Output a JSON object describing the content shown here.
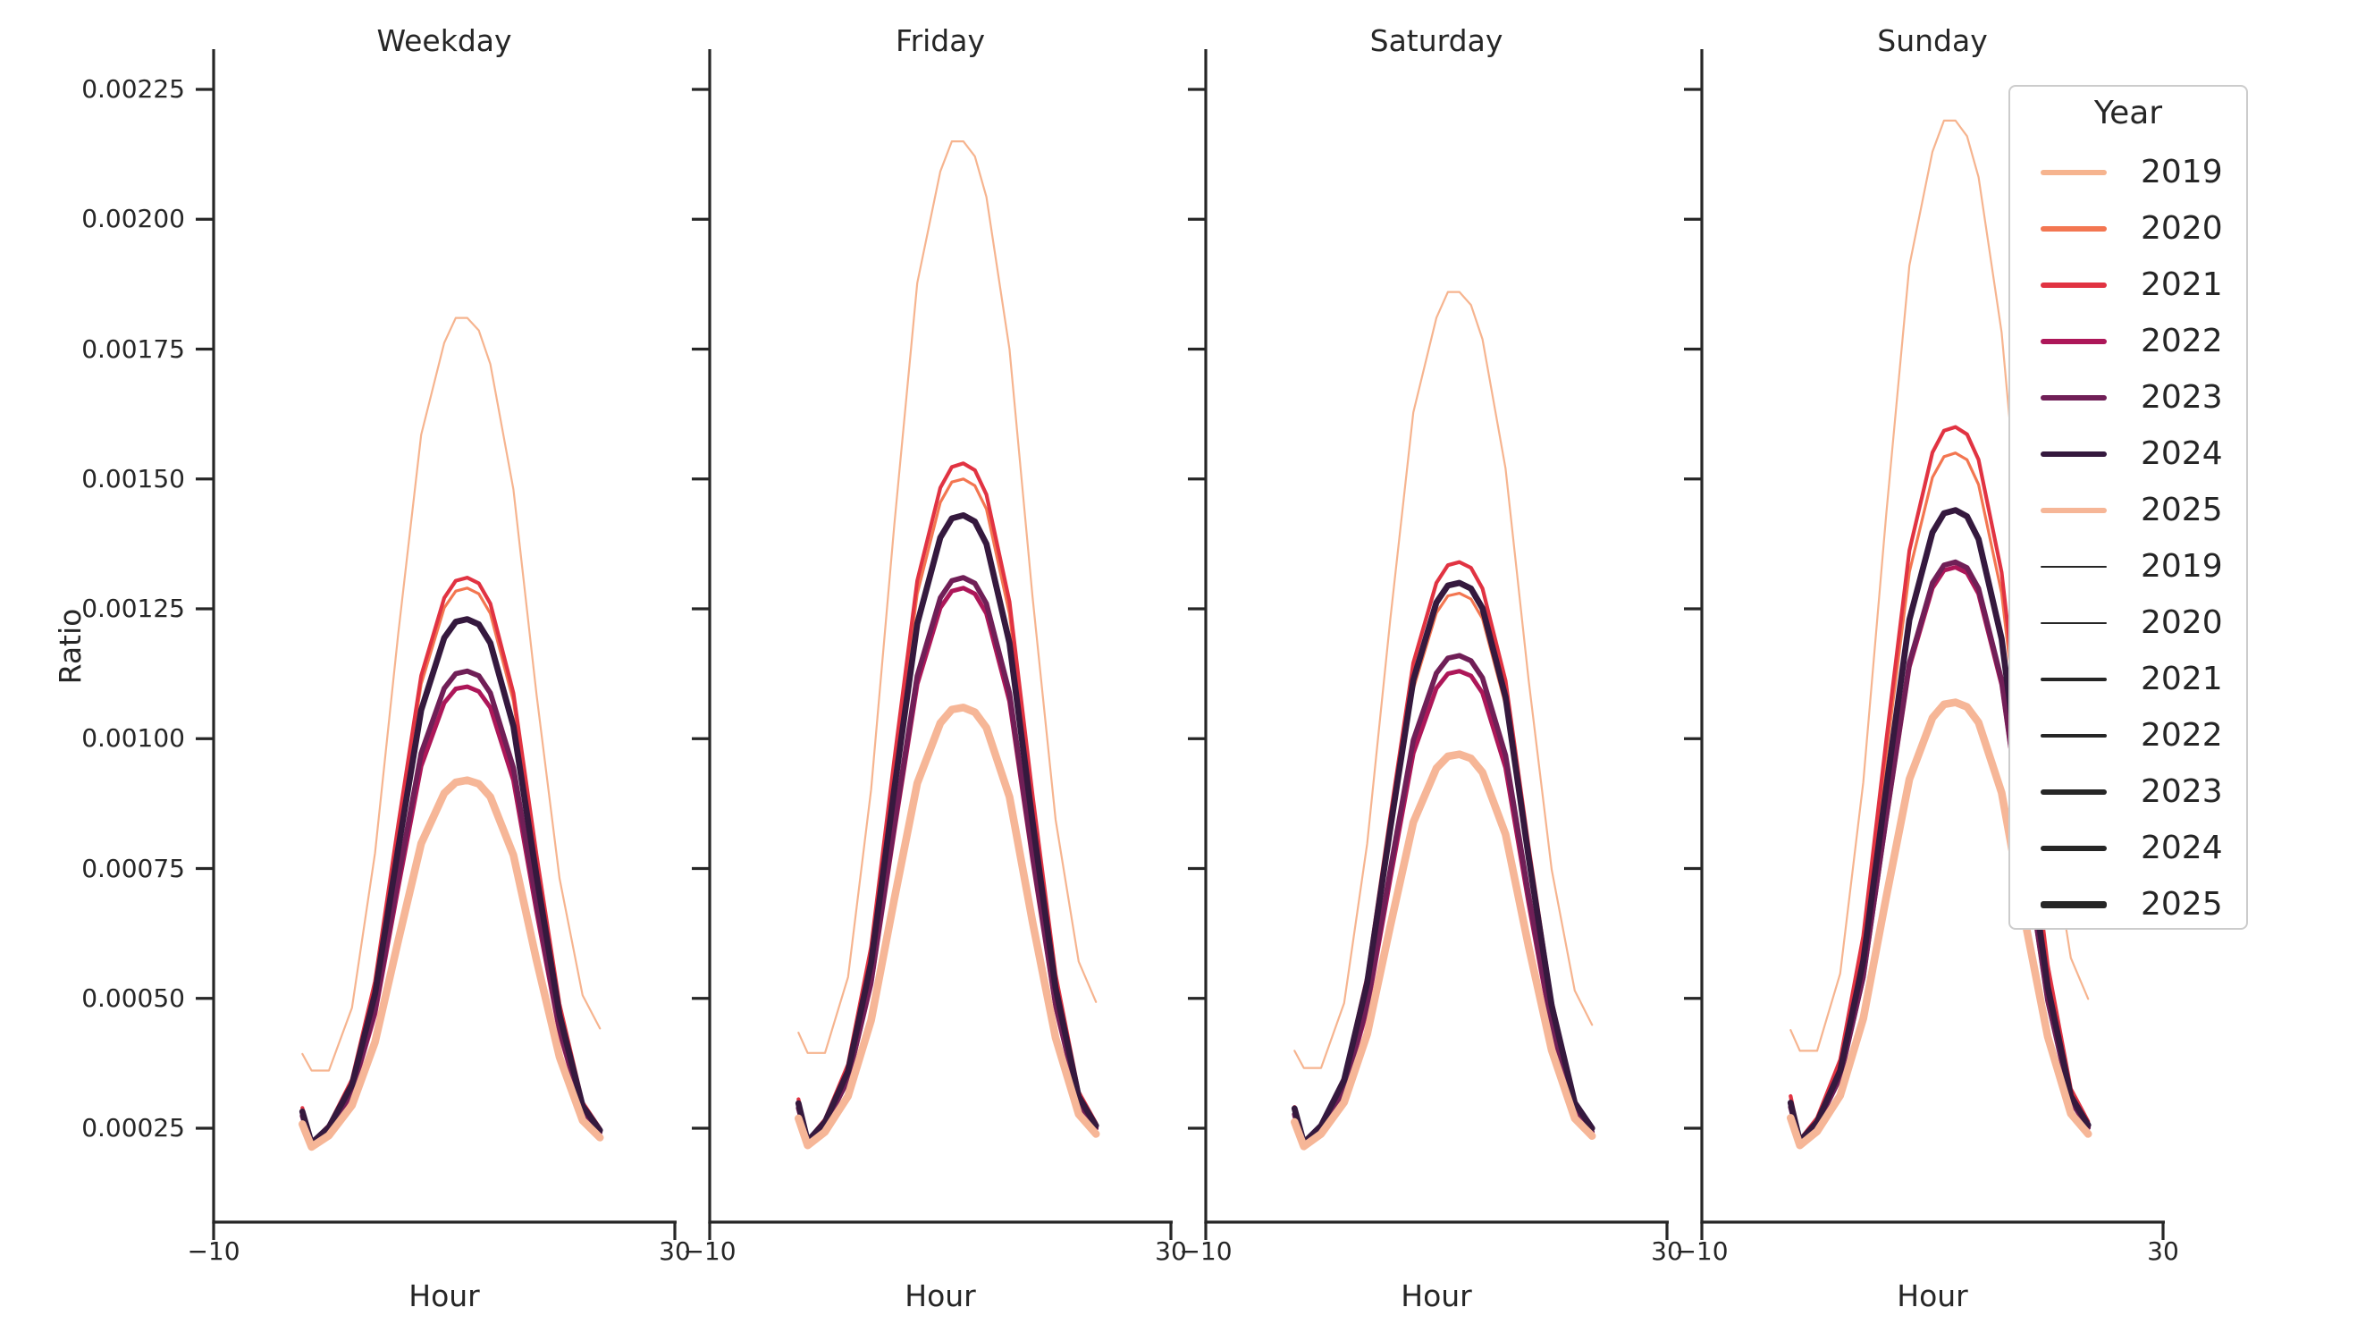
{
  "chart_data": {
    "type": "line",
    "xlabel": "Hour",
    "ylabel": "Ratio",
    "x_range": [
      -10,
      30
    ],
    "x_tick_labels": [
      "−10",
      "30"
    ],
    "y_ticks": [
      0.00225,
      0.002,
      0.00175,
      0.0015,
      0.00125,
      0.001,
      0.00075,
      0.0005,
      0.00025
    ],
    "y_tick_labels": [
      "0.00225",
      "0.00200",
      "0.00175",
      "0.00150",
      "0.00125",
      "0.00100",
      "0.00075",
      "0.00050",
      "0.00025"
    ],
    "axis_color": "#262626",
    "hours": [
      -2.3,
      -1.5,
      0,
      2,
      4,
      6,
      8,
      10,
      11,
      12,
      13,
      14,
      16,
      18,
      20,
      22,
      23.5
    ],
    "year_colors": {
      "2019": "#f6b48f",
      "2020": "#f37651",
      "2021": "#e13342",
      "2022": "#ad1759",
      "2023": "#701f57",
      "2024": "#35193e",
      "2025": "#f6b697"
    },
    "year_widths": {
      "2019": 2.2,
      "2020": 3.2,
      "2021": 4.2,
      "2022": 5.0,
      "2023": 5.8,
      "2024": 6.8,
      "2025": 8.6
    },
    "facets": [
      {
        "title": "Weekday",
        "series": [
          {
            "year": "2019",
            "color": "#f6b48f",
            "width": 2.2,
            "peak": 0.00181,
            "values": [
              0.000393,
              0.000361,
              0.000361,
              0.000482,
              0.00078,
              0.0012,
              0.001585,
              0.001762,
              0.00181,
              0.00181,
              0.001786,
              0.001721,
              0.00148,
              0.001086,
              0.000731,
              0.000506,
              0.000442
            ]
          },
          {
            "year": "2020",
            "color": "#f37651",
            "width": 3.2,
            "peak": 0.00129,
            "values": [
              0.000287,
              0.000222,
              0.000255,
              0.000342,
              0.000527,
              0.000821,
              0.001105,
              0.001252,
              0.001284,
              0.00129,
              0.001279,
              0.001241,
              0.001072,
              0.000767,
              0.000483,
              0.000298,
              0.000249
            ]
          },
          {
            "year": "2021",
            "color": "#e13342",
            "width": 4.2,
            "peak": 0.00131,
            "values": [
              0.000289,
              0.000222,
              0.000256,
              0.000344,
              0.000533,
              0.000833,
              0.001121,
              0.001271,
              0.001304,
              0.00131,
              0.001299,
              0.00126,
              0.001088,
              0.000777,
              0.000489,
              0.0003,
              0.00025
            ]
          },
          {
            "year": "2022",
            "color": "#ad1759",
            "width": 5.0,
            "peak": 0.0011,
            "values": [
              0.000272,
              0.000218,
              0.000245,
              0.000317,
              0.00047,
              0.000713,
              0.000947,
              0.001069,
              0.001096,
              0.0011,
              0.001091,
              0.00106,
              0.00092,
              0.000668,
              0.000434,
              0.000281,
              0.000241
            ]
          },
          {
            "year": "2023",
            "color": "#701f57",
            "width": 5.8,
            "peak": 0.00113,
            "values": [
              0.000274,
              0.000219,
              0.000247,
              0.000321,
              0.000479,
              0.00073,
              0.000972,
              0.001097,
              0.001125,
              0.00113,
              0.001121,
              0.001088,
              0.000944,
              0.000684,
              0.000442,
              0.000284,
              0.000242
            ]
          },
          {
            "year": "2024",
            "color": "#35193e",
            "width": 6.8,
            "peak": 0.00123,
            "values": [
              0.000282,
              0.000221,
              0.000252,
              0.000334,
              0.000509,
              0.000787,
              0.001055,
              0.001194,
              0.001225,
              0.00123,
              0.00122,
              0.001184,
              0.001024,
              0.000736,
              0.000468,
              0.000293,
              0.000246
            ]
          },
          {
            "year": "2025",
            "color": "#f6b697",
            "width": 8.6,
            "peak": 0.00092,
            "values": [
              0.000258,
              0.000214,
              0.000236,
              0.000294,
              0.000416,
              0.00061,
              0.000798,
              0.000895,
              0.000916,
              0.00092,
              0.000913,
              0.000888,
              0.000776,
              0.000574,
              0.000387,
              0.000265,
              0.000232
            ]
          }
        ]
      },
      {
        "title": "Friday",
        "series": [
          {
            "year": "2019",
            "color": "#f6b48f",
            "width": 2.2,
            "peak": 0.00215,
            "values": [
              0.000434,
              0.000395,
              0.000395,
              0.000541,
              0.000902,
              0.001409,
              0.001877,
              0.002092,
              0.00215,
              0.00215,
              0.002121,
              0.002043,
              0.00175,
              0.001273,
              0.000844,
              0.000571,
              0.000493
            ]
          },
          {
            "year": "2020",
            "color": "#f37651",
            "width": 3.2,
            "peak": 0.0015,
            "values": [
              0.000304,
              0.000226,
              0.000265,
              0.000369,
              0.00059,
              0.000941,
              0.001279,
              0.001455,
              0.001494,
              0.0015,
              0.001487,
              0.001442,
              0.00124,
              0.000876,
              0.000538,
              0.000317,
              0.000259
            ]
          },
          {
            "year": "2021",
            "color": "#e13342",
            "width": 4.2,
            "peak": 0.00153,
            "values": [
              0.000306,
              0.000227,
              0.000267,
              0.000373,
              0.000599,
              0.000958,
              0.001304,
              0.001483,
              0.001523,
              0.00153,
              0.001517,
              0.00147,
              0.001264,
              0.000892,
              0.000546,
              0.00032,
              0.00026
            ]
          },
          {
            "year": "2022",
            "color": "#ad1759",
            "width": 5.0,
            "peak": 0.00129,
            "values": [
              0.000287,
              0.000222,
              0.000255,
              0.000342,
              0.000527,
              0.000821,
              0.001105,
              0.001252,
              0.001284,
              0.00129,
              0.001279,
              0.001241,
              0.001072,
              0.000767,
              0.000483,
              0.000298,
              0.000249
            ]
          },
          {
            "year": "2023",
            "color": "#701f57",
            "width": 5.8,
            "peak": 0.00131,
            "values": [
              0.000289,
              0.000222,
              0.000256,
              0.000344,
              0.000533,
              0.000833,
              0.001121,
              0.001271,
              0.001304,
              0.00131,
              0.001299,
              0.00126,
              0.001088,
              0.000777,
              0.000489,
              0.0003,
              0.00025
            ]
          },
          {
            "year": "2024",
            "color": "#35193e",
            "width": 6.8,
            "peak": 0.00143,
            "values": [
              0.000298,
              0.000225,
              0.000262,
              0.00036,
              0.000569,
              0.000901,
              0.001221,
              0.001387,
              0.001424,
              0.00143,
              0.001418,
              0.001375,
              0.001184,
              0.00084,
              0.00052,
              0.000311,
              0.000255
            ]
          },
          {
            "year": "2025",
            "color": "#f6b697",
            "width": 8.6,
            "peak": 0.00106,
            "values": [
              0.000269,
              0.000217,
              0.000243,
              0.000312,
              0.000458,
              0.00069,
              0.000914,
              0.00103,
              0.001056,
              0.00106,
              0.001051,
              0.001021,
              0.000888,
              0.000647,
              0.000424,
              0.000277,
              0.000239
            ]
          }
        ]
      },
      {
        "title": "Saturday",
        "series": [
          {
            "year": "2019",
            "color": "#f6b48f",
            "width": 2.2,
            "peak": 0.00186,
            "values": [
              0.000399,
              0.000366,
              0.000366,
              0.000491,
              0.000798,
              0.001229,
              0.001628,
              0.00181,
              0.00186,
              0.00186,
              0.001835,
              0.001769,
              0.00152,
              0.001113,
              0.000748,
              0.000515,
              0.000449
            ]
          },
          {
            "year": "2020",
            "color": "#f37651",
            "width": 3.2,
            "peak": 0.00128,
            "values": [
              0.000286,
              0.000222,
              0.000254,
              0.00034,
              0.000524,
              0.000816,
              0.001096,
              0.001242,
              0.001275,
              0.00128,
              0.001269,
              0.001231,
              0.001064,
              0.000762,
              0.000481,
              0.000297,
              0.000249
            ]
          },
          {
            "year": "2021",
            "color": "#e13342",
            "width": 4.2,
            "peak": 0.00134,
            "values": [
              0.000291,
              0.000223,
              0.000257,
              0.000348,
              0.000542,
              0.00085,
              0.001146,
              0.0013,
              0.001334,
              0.00134,
              0.001329,
              0.001289,
              0.001112,
              0.000793,
              0.000496,
              0.000303,
              0.000251
            ]
          },
          {
            "year": "2022",
            "color": "#ad1759",
            "width": 5.0,
            "peak": 0.00113,
            "values": [
              0.000274,
              0.000219,
              0.000247,
              0.000321,
              0.000479,
              0.00073,
              0.000972,
              0.001097,
              0.001125,
              0.00113,
              0.001121,
              0.001088,
              0.000944,
              0.000684,
              0.000442,
              0.000284,
              0.000242
            ]
          },
          {
            "year": "2023",
            "color": "#701f57",
            "width": 5.8,
            "peak": 0.00116,
            "values": [
              0.000277,
              0.000219,
              0.000248,
              0.000325,
              0.000488,
              0.000747,
              0.000997,
              0.001126,
              0.001155,
              0.00116,
              0.00115,
              0.001117,
              0.000968,
              0.000699,
              0.00045,
              0.000286,
              0.000243
            ]
          },
          {
            "year": "2024",
            "color": "#35193e",
            "width": 6.8,
            "peak": 0.0013,
            "values": [
              0.000288,
              0.000222,
              0.000255,
              0.000343,
              0.00053,
              0.000827,
              0.001113,
              0.001262,
              0.001295,
              0.0013,
              0.001289,
              0.001251,
              0.00108,
              0.000772,
              0.000486,
              0.000299,
              0.00025
            ]
          },
          {
            "year": "2025",
            "color": "#f6b697",
            "width": 8.6,
            "peak": 0.00097,
            "values": [
              0.000262,
              0.000215,
              0.000239,
              0.0003,
              0.000431,
              0.000639,
              0.000839,
              0.000943,
              0.000966,
              0.00097,
              0.000962,
              0.000935,
              0.000816,
              0.0006,
              0.0004,
              0.000269,
              0.000235
            ]
          }
        ]
      },
      {
        "title": "Sunday",
        "series": [
          {
            "year": "2019",
            "color": "#f6b48f",
            "width": 2.2,
            "peak": 0.00219,
            "values": [
              0.000439,
              0.000399,
              0.000399,
              0.000548,
              0.000916,
              0.001434,
              0.001911,
              0.00213,
              0.00219,
              0.00219,
              0.00216,
              0.002081,
              0.001782,
              0.001295,
              0.000857,
              0.000578,
              0.000499
            ]
          },
          {
            "year": "2020",
            "color": "#f37651",
            "width": 3.2,
            "peak": 0.00155,
            "values": [
              0.000308,
              0.000227,
              0.000268,
              0.000376,
              0.000605,
              0.00097,
              0.001321,
              0.001503,
              0.001543,
              0.00155,
              0.001537,
              0.001489,
              0.00128,
              0.000902,
              0.000551,
              0.000322,
              0.000261
            ]
          },
          {
            "year": "2021",
            "color": "#e13342",
            "width": 4.2,
            "peak": 0.0016,
            "values": [
              0.000312,
              0.000228,
              0.00027,
              0.000382,
              0.00062,
              0.000998,
              0.001362,
              0.001551,
              0.001593,
              0.0016,
              0.001586,
              0.001537,
              0.00132,
              0.000928,
              0.000564,
              0.000326,
              0.000263
            ]
          },
          {
            "year": "2022",
            "color": "#ad1759",
            "width": 5.0,
            "peak": 0.00133,
            "values": [
              0.00029,
              0.000223,
              0.000257,
              0.000347,
              0.000539,
              0.000844,
              0.001138,
              0.00129,
              0.001324,
              0.00133,
              0.001319,
              0.001279,
              0.001104,
              0.000788,
              0.000494,
              0.000302,
              0.000251
            ]
          },
          {
            "year": "2023",
            "color": "#701f57",
            "width": 5.8,
            "peak": 0.00134,
            "values": [
              0.000291,
              0.000223,
              0.000257,
              0.000348,
              0.000542,
              0.00085,
              0.001146,
              0.0013,
              0.001334,
              0.00134,
              0.001329,
              0.001289,
              0.001112,
              0.000793,
              0.000496,
              0.000303,
              0.000251
            ]
          },
          {
            "year": "2024",
            "color": "#35193e",
            "width": 6.8,
            "peak": 0.00144,
            "values": [
              0.000299,
              0.000225,
              0.000262,
              0.000361,
              0.000572,
              0.000907,
              0.001229,
              0.001397,
              0.001434,
              0.00144,
              0.001428,
              0.001384,
              0.001192,
              0.000845,
              0.000522,
              0.000312,
              0.000256
            ]
          },
          {
            "year": "2025",
            "color": "#f6b697",
            "width": 8.6,
            "peak": 0.00107,
            "values": [
              0.00027,
              0.000217,
              0.000244,
              0.000313,
              0.000461,
              0.000696,
              0.000922,
              0.00104,
              0.001066,
              0.00107,
              0.001061,
              0.001031,
              0.000896,
              0.000652,
              0.000426,
              0.000278,
              0.000239
            ]
          }
        ]
      }
    ],
    "legend": {
      "title": "Year",
      "color_entries": [
        {
          "label": "2019",
          "color": "#f6b48f"
        },
        {
          "label": "2020",
          "color": "#f37651"
        },
        {
          "label": "2021",
          "color": "#e13342"
        },
        {
          "label": "2022",
          "color": "#ad1759"
        },
        {
          "label": "2023",
          "color": "#701f57"
        },
        {
          "label": "2024",
          "color": "#35193e"
        },
        {
          "label": "2025",
          "color": "#f6b697"
        }
      ],
      "size_entries": [
        {
          "label": "2019",
          "width": 1.8
        },
        {
          "label": "2020",
          "width": 2.8
        },
        {
          "label": "2021",
          "width": 3.8
        },
        {
          "label": "2022",
          "width": 4.8
        },
        {
          "label": "2023",
          "width": 5.8
        },
        {
          "label": "2024",
          "width": 6.8
        },
        {
          "label": "2025",
          "width": 8.2
        }
      ]
    }
  }
}
